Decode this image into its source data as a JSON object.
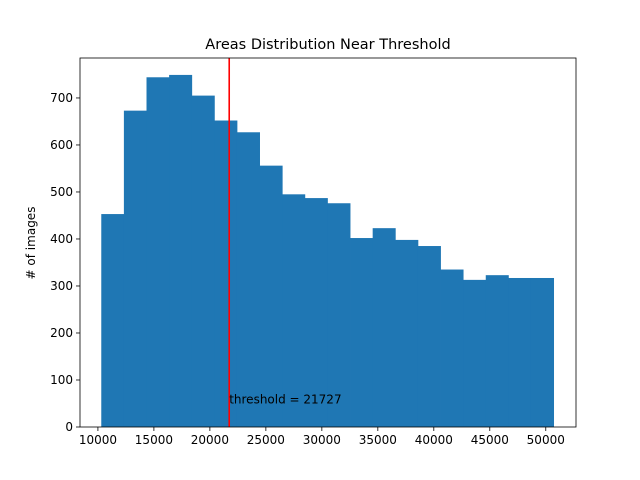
{
  "chart_data": {
    "type": "bar",
    "title": "Areas Distribution Near Threshold",
    "xlabel": "",
    "ylabel": "# of images",
    "xlim": [
      8400,
      52700
    ],
    "ylim": [
      0,
      785
    ],
    "x_ticks": [
      10000,
      15000,
      20000,
      25000,
      30000,
      35000,
      40000,
      45000,
      50000
    ],
    "y_ticks": [
      0,
      100,
      200,
      300,
      400,
      500,
      600,
      700
    ],
    "bins": [
      {
        "x0": 10300,
        "x1": 12320,
        "value": 453
      },
      {
        "x0": 12320,
        "x1": 14340,
        "value": 673
      },
      {
        "x0": 14340,
        "x1": 16360,
        "value": 744
      },
      {
        "x0": 16360,
        "x1": 18380,
        "value": 749
      },
      {
        "x0": 18380,
        "x1": 20400,
        "value": 705
      },
      {
        "x0": 20400,
        "x1": 22420,
        "value": 652
      },
      {
        "x0": 22420,
        "x1": 24440,
        "value": 627
      },
      {
        "x0": 24440,
        "x1": 26460,
        "value": 556
      },
      {
        "x0": 26460,
        "x1": 28480,
        "value": 495
      },
      {
        "x0": 28480,
        "x1": 30500,
        "value": 487
      },
      {
        "x0": 30500,
        "x1": 32520,
        "value": 476
      },
      {
        "x0": 32520,
        "x1": 34540,
        "value": 402
      },
      {
        "x0": 34540,
        "x1": 36560,
        "value": 423
      },
      {
        "x0": 36560,
        "x1": 38580,
        "value": 398
      },
      {
        "x0": 38580,
        "x1": 40600,
        "value": 385
      },
      {
        "x0": 40600,
        "x1": 42620,
        "value": 335
      },
      {
        "x0": 42620,
        "x1": 44640,
        "value": 313
      },
      {
        "x0": 44640,
        "x1": 46660,
        "value": 323
      },
      {
        "x0": 46660,
        "x1": 48680,
        "value": 317
      },
      {
        "x0": 48680,
        "x1": 50700,
        "value": 317
      }
    ],
    "threshold": {
      "value": 21727,
      "label": "threshold = 21727",
      "color": "#ff0000"
    },
    "bar_color": "#1f77b4",
    "grid": false,
    "legend": "none"
  }
}
